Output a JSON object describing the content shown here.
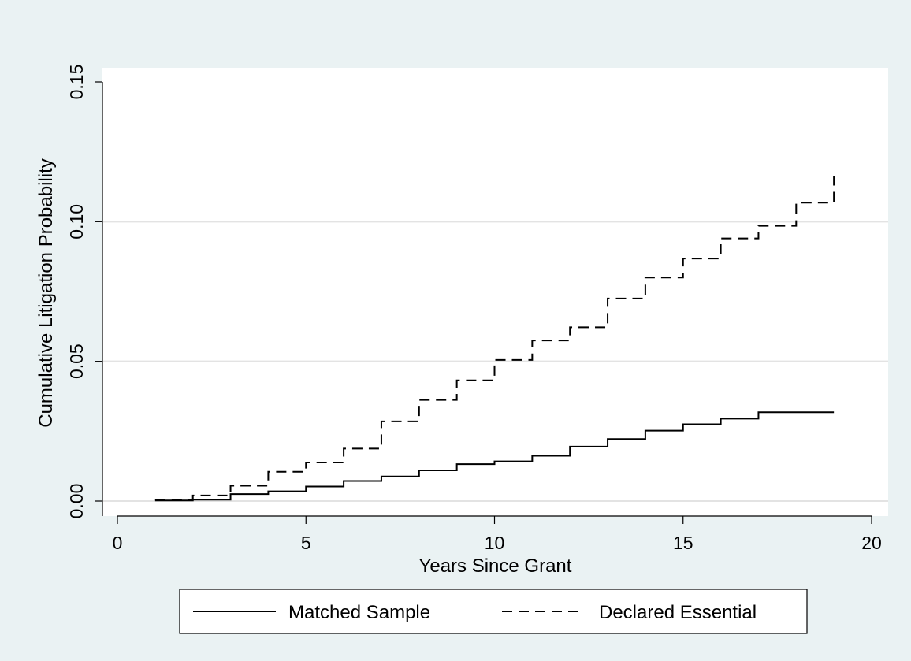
{
  "chart_data": {
    "type": "line",
    "title": "",
    "xlabel": "Years Since Grant",
    "ylabel": "Cumulative Litigation Probability",
    "xlim": [
      0,
      20
    ],
    "ylim": [
      0,
      0.15
    ],
    "x_ticks": [
      0,
      5,
      10,
      15,
      20
    ],
    "x_tick_labels": [
      "0",
      "5",
      "10",
      "15",
      "20"
    ],
    "y_ticks": [
      0,
      0.05,
      0.1,
      0.15
    ],
    "y_tick_labels": [
      "0.00",
      "0.05",
      "0.10",
      "0.15"
    ],
    "grid": "horizontal",
    "legend_position": "bottom",
    "step": true,
    "series": [
      {
        "name": "Matched Sample",
        "line_style": "solid",
        "color": "#000000",
        "x": [
          1,
          2,
          3,
          4,
          5,
          6,
          7,
          8,
          9,
          10,
          11,
          12,
          13,
          14,
          15,
          16,
          17,
          18,
          19
        ],
        "y": [
          0.0002,
          0.0005,
          0.0025,
          0.0035,
          0.0052,
          0.0072,
          0.0088,
          0.011,
          0.0132,
          0.0142,
          0.0162,
          0.0195,
          0.0222,
          0.0252,
          0.0275,
          0.0295,
          0.0318,
          0.0318,
          0.0318
        ]
      },
      {
        "name": "Declared Essential",
        "line_style": "dashed",
        "color": "#000000",
        "x": [
          1,
          2,
          3,
          4,
          5,
          6,
          7,
          8,
          9,
          10,
          11,
          12,
          13,
          14,
          15,
          16,
          17,
          18,
          19
        ],
        "y": [
          0.0005,
          0.002,
          0.0055,
          0.0105,
          0.0138,
          0.0188,
          0.0285,
          0.0362,
          0.0432,
          0.0505,
          0.0575,
          0.0622,
          0.0725,
          0.08,
          0.0868,
          0.094,
          0.0985,
          0.1068,
          0.1162
        ]
      }
    ]
  }
}
